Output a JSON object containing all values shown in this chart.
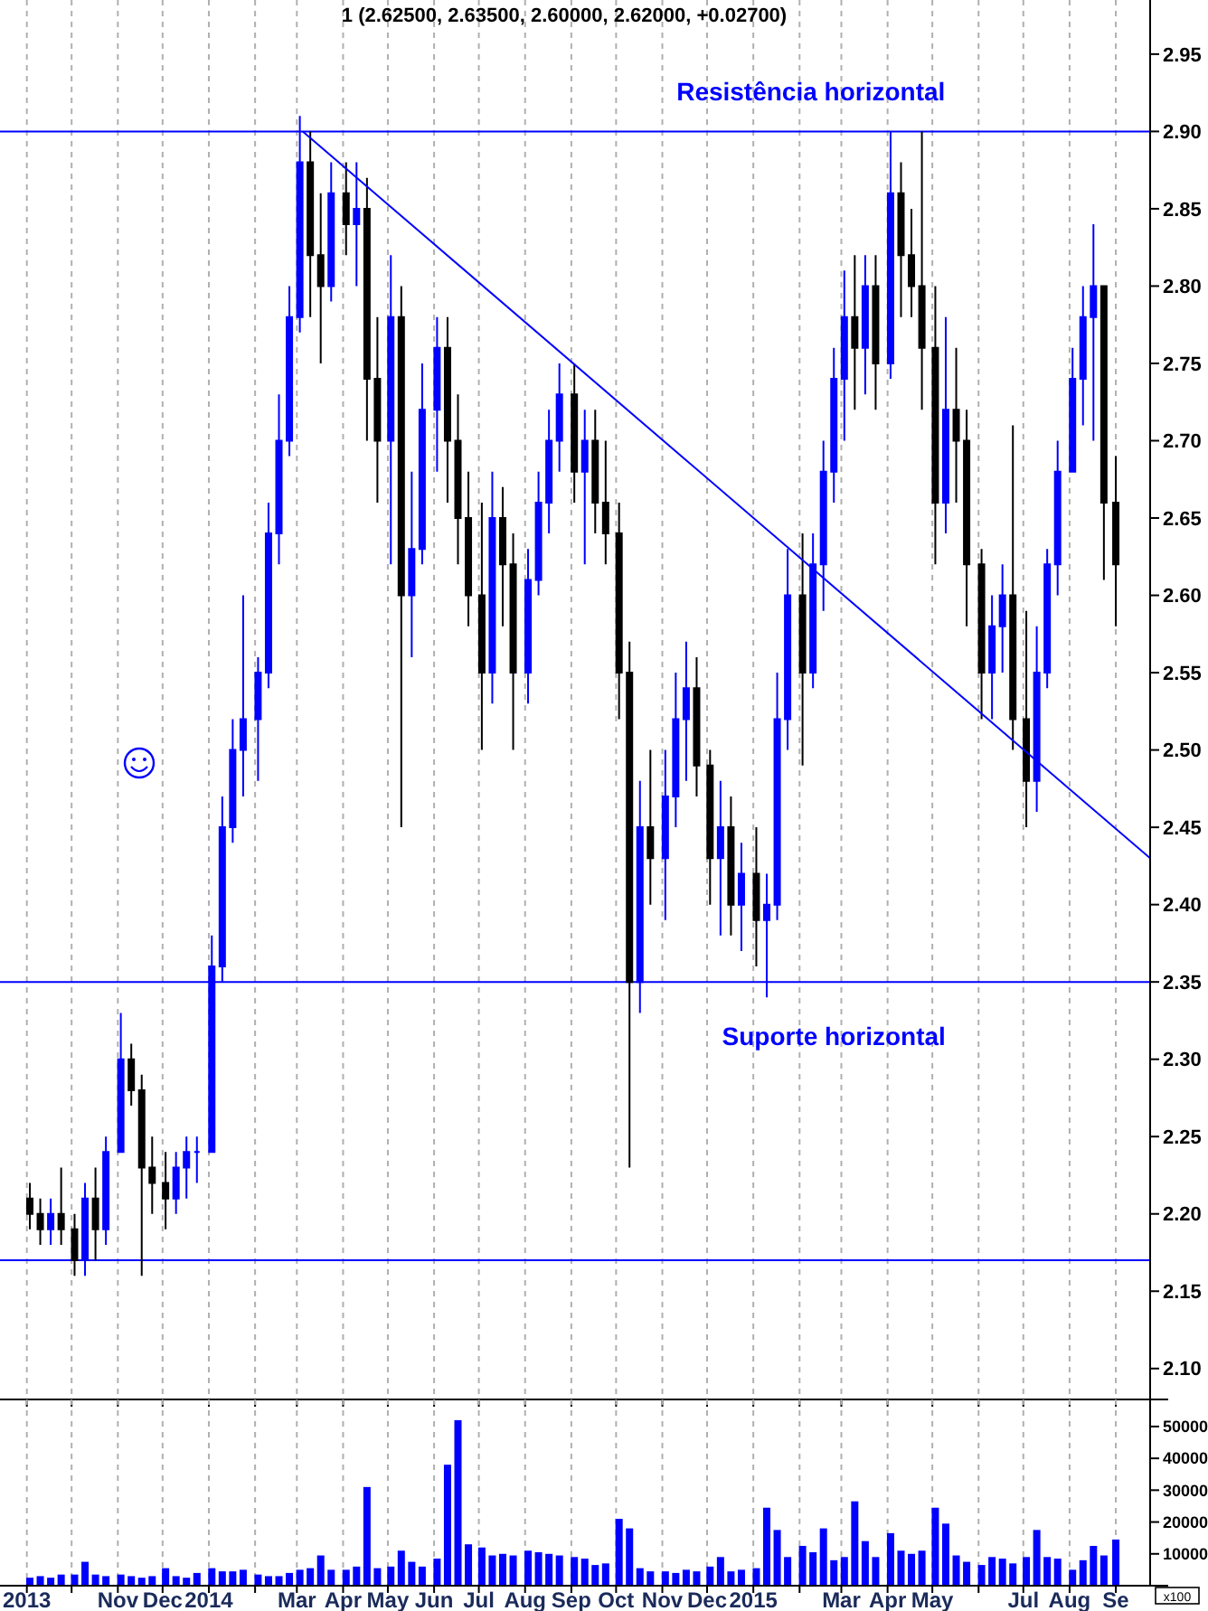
{
  "chart_data": [
    {
      "type": "candlestick",
      "title": "1 (2.62500, 2.63500, 2.60000, 2.62000, +0.02700)",
      "x": [
        "2013-09-03",
        "2013-09-10",
        "2013-09-17",
        "2013-09-24",
        "2013-10-03",
        "2013-10-10",
        "2013-10-17",
        "2013-10-24",
        "2013-11-03",
        "2013-11-10",
        "2013-11-17",
        "2013-11-24",
        "2013-12-03",
        "2013-12-10",
        "2013-12-17",
        "2013-12-24",
        "2014-01-03",
        "2014-01-10",
        "2014-01-17",
        "2014-01-24",
        "2014-02-03",
        "2014-02-10",
        "2014-02-17",
        "2014-02-24",
        "2014-03-03",
        "2014-03-10",
        "2014-03-17",
        "2014-03-24",
        "2014-04-03",
        "2014-04-10",
        "2014-04-17",
        "2014-04-24",
        "2014-05-03",
        "2014-05-10",
        "2014-05-17",
        "2014-05-24",
        "2014-06-03",
        "2014-06-10",
        "2014-06-17",
        "2014-06-24",
        "2014-07-03",
        "2014-07-10",
        "2014-07-17",
        "2014-07-24",
        "2014-08-03",
        "2014-08-10",
        "2014-08-17",
        "2014-08-24",
        "2014-09-03",
        "2014-09-10",
        "2014-09-17",
        "2014-09-24",
        "2014-10-03",
        "2014-10-10",
        "2014-10-17",
        "2014-10-24",
        "2014-11-03",
        "2014-11-10",
        "2014-11-17",
        "2014-11-24",
        "2014-12-03",
        "2014-12-10",
        "2014-12-17",
        "2014-12-24",
        "2015-01-03",
        "2015-01-10",
        "2015-01-17",
        "2015-01-24",
        "2015-02-03",
        "2015-02-10",
        "2015-02-17",
        "2015-02-24",
        "2015-03-03",
        "2015-03-10",
        "2015-03-17",
        "2015-03-24",
        "2015-04-03",
        "2015-04-10",
        "2015-04-17",
        "2015-04-24",
        "2015-05-03",
        "2015-05-10",
        "2015-05-17",
        "2015-05-24",
        "2015-06-03",
        "2015-06-10",
        "2015-06-17",
        "2015-06-24",
        "2015-07-03",
        "2015-07-10",
        "2015-07-17",
        "2015-07-24",
        "2015-08-03",
        "2015-08-10",
        "2015-08-17",
        "2015-08-24",
        "2015-09-01"
      ],
      "ohlc": [
        [
          2.21,
          2.22,
          2.19,
          2.2
        ],
        [
          2.2,
          2.21,
          2.18,
          2.19
        ],
        [
          2.19,
          2.21,
          2.18,
          2.2
        ],
        [
          2.2,
          2.23,
          2.18,
          2.19
        ],
        [
          2.19,
          2.2,
          2.16,
          2.17
        ],
        [
          2.17,
          2.22,
          2.16,
          2.21
        ],
        [
          2.21,
          2.23,
          2.17,
          2.19
        ],
        [
          2.19,
          2.25,
          2.18,
          2.24
        ],
        [
          2.24,
          2.33,
          2.24,
          2.3
        ],
        [
          2.3,
          2.31,
          2.27,
          2.28
        ],
        [
          2.28,
          2.29,
          2.16,
          2.23
        ],
        [
          2.23,
          2.25,
          2.2,
          2.22
        ],
        [
          2.22,
          2.24,
          2.19,
          2.21
        ],
        [
          2.21,
          2.24,
          2.2,
          2.23
        ],
        [
          2.23,
          2.25,
          2.21,
          2.24
        ],
        [
          2.24,
          2.25,
          2.22,
          2.24
        ],
        [
          2.24,
          2.38,
          2.24,
          2.36
        ],
        [
          2.36,
          2.47,
          2.35,
          2.45
        ],
        [
          2.45,
          2.52,
          2.44,
          2.5
        ],
        [
          2.5,
          2.6,
          2.47,
          2.52
        ],
        [
          2.52,
          2.56,
          2.48,
          2.55
        ],
        [
          2.55,
          2.66,
          2.54,
          2.64
        ],
        [
          2.64,
          2.73,
          2.62,
          2.7
        ],
        [
          2.7,
          2.8,
          2.69,
          2.78
        ],
        [
          2.78,
          2.91,
          2.77,
          2.88
        ],
        [
          2.88,
          2.9,
          2.78,
          2.82
        ],
        [
          2.82,
          2.86,
          2.75,
          2.8
        ],
        [
          2.8,
          2.88,
          2.79,
          2.86
        ],
        [
          2.86,
          2.88,
          2.82,
          2.84
        ],
        [
          2.84,
          2.88,
          2.8,
          2.85
        ],
        [
          2.85,
          2.87,
          2.7,
          2.74
        ],
        [
          2.74,
          2.78,
          2.66,
          2.7
        ],
        [
          2.7,
          2.82,
          2.62,
          2.78
        ],
        [
          2.78,
          2.8,
          2.45,
          2.6
        ],
        [
          2.6,
          2.68,
          2.56,
          2.63
        ],
        [
          2.63,
          2.75,
          2.62,
          2.72
        ],
        [
          2.72,
          2.78,
          2.68,
          2.76
        ],
        [
          2.76,
          2.78,
          2.66,
          2.7
        ],
        [
          2.7,
          2.73,
          2.62,
          2.65
        ],
        [
          2.65,
          2.68,
          2.58,
          2.6
        ],
        [
          2.6,
          2.66,
          2.5,
          2.55
        ],
        [
          2.55,
          2.68,
          2.53,
          2.65
        ],
        [
          2.65,
          2.67,
          2.58,
          2.62
        ],
        [
          2.62,
          2.64,
          2.5,
          2.55
        ],
        [
          2.55,
          2.63,
          2.53,
          2.61
        ],
        [
          2.61,
          2.68,
          2.6,
          2.66
        ],
        [
          2.66,
          2.72,
          2.64,
          2.7
        ],
        [
          2.7,
          2.75,
          2.68,
          2.73
        ],
        [
          2.73,
          2.75,
          2.66,
          2.68
        ],
        [
          2.68,
          2.72,
          2.62,
          2.7
        ],
        [
          2.7,
          2.72,
          2.64,
          2.66
        ],
        [
          2.66,
          2.7,
          2.62,
          2.64
        ],
        [
          2.64,
          2.66,
          2.52,
          2.55
        ],
        [
          2.55,
          2.57,
          2.23,
          2.35
        ],
        [
          2.35,
          2.48,
          2.33,
          2.45
        ],
        [
          2.45,
          2.5,
          2.4,
          2.43
        ],
        [
          2.43,
          2.5,
          2.39,
          2.47
        ],
        [
          2.47,
          2.55,
          2.45,
          2.52
        ],
        [
          2.52,
          2.57,
          2.48,
          2.54
        ],
        [
          2.54,
          2.56,
          2.47,
          2.49
        ],
        [
          2.49,
          2.5,
          2.4,
          2.43
        ],
        [
          2.43,
          2.48,
          2.38,
          2.45
        ],
        [
          2.45,
          2.47,
          2.38,
          2.4
        ],
        [
          2.4,
          2.44,
          2.37,
          2.42
        ],
        [
          2.42,
          2.45,
          2.36,
          2.39
        ],
        [
          2.39,
          2.42,
          2.34,
          2.4
        ],
        [
          2.4,
          2.55,
          2.39,
          2.52
        ],
        [
          2.52,
          2.63,
          2.5,
          2.6
        ],
        [
          2.6,
          2.64,
          2.49,
          2.55
        ],
        [
          2.55,
          2.64,
          2.54,
          2.62
        ],
        [
          2.62,
          2.7,
          2.59,
          2.68
        ],
        [
          2.68,
          2.76,
          2.66,
          2.74
        ],
        [
          2.74,
          2.81,
          2.7,
          2.78
        ],
        [
          2.78,
          2.82,
          2.72,
          2.76
        ],
        [
          2.76,
          2.82,
          2.73,
          2.8
        ],
        [
          2.8,
          2.82,
          2.72,
          2.75
        ],
        [
          2.75,
          2.9,
          2.74,
          2.86
        ],
        [
          2.86,
          2.88,
          2.78,
          2.82
        ],
        [
          2.82,
          2.85,
          2.78,
          2.8
        ],
        [
          2.8,
          2.9,
          2.72,
          2.76
        ],
        [
          2.76,
          2.8,
          2.62,
          2.66
        ],
        [
          2.66,
          2.78,
          2.64,
          2.72
        ],
        [
          2.72,
          2.76,
          2.66,
          2.7
        ],
        [
          2.7,
          2.72,
          2.58,
          2.62
        ],
        [
          2.62,
          2.63,
          2.52,
          2.55
        ],
        [
          2.55,
          2.6,
          2.52,
          2.58
        ],
        [
          2.58,
          2.62,
          2.55,
          2.6
        ],
        [
          2.6,
          2.71,
          2.5,
          2.52
        ],
        [
          2.52,
          2.59,
          2.45,
          2.48
        ],
        [
          2.48,
          2.58,
          2.46,
          2.55
        ],
        [
          2.55,
          2.63,
          2.54,
          2.62
        ],
        [
          2.62,
          2.7,
          2.6,
          2.68
        ],
        [
          2.68,
          2.76,
          2.68,
          2.74
        ],
        [
          2.74,
          2.8,
          2.71,
          2.78
        ],
        [
          2.78,
          2.84,
          2.7,
          2.8
        ],
        [
          2.8,
          2.8,
          2.61,
          2.66
        ],
        [
          2.66,
          2.69,
          2.58,
          2.62
        ]
      ],
      "colors": [
        "#000000",
        "#000000",
        "#0000ff",
        "#000000",
        "#000000",
        "#0000ff",
        "#000000",
        "#0000ff",
        "#0000ff",
        "#000000",
        "#000000",
        "#000000",
        "#000000",
        "#0000ff",
        "#0000ff",
        "#0000ff",
        "#0000ff",
        "#0000ff",
        "#0000ff",
        "#0000ff",
        "#0000ff",
        "#0000ff",
        "#0000ff",
        "#0000ff",
        "#0000ff",
        "#000000",
        "#000000",
        "#0000ff",
        "#000000",
        "#0000ff",
        "#000000",
        "#000000",
        "#0000ff",
        "#000000",
        "#0000ff",
        "#0000ff",
        "#0000ff",
        "#000000",
        "#000000",
        "#000000",
        "#000000",
        "#0000ff",
        "#000000",
        "#000000",
        "#0000ff",
        "#0000ff",
        "#0000ff",
        "#0000ff",
        "#000000",
        "#0000ff",
        "#000000",
        "#000000",
        "#000000",
        "#000000",
        "#0000ff",
        "#000000",
        "#0000ff",
        "#0000ff",
        "#0000ff",
        "#000000",
        "#000000",
        "#0000ff",
        "#000000",
        "#0000ff",
        "#000000",
        "#0000ff",
        "#0000ff",
        "#0000ff",
        "#000000",
        "#0000ff",
        "#0000ff",
        "#0000ff",
        "#0000ff",
        "#000000",
        "#0000ff",
        "#000000",
        "#0000ff",
        "#000000",
        "#000000",
        "#000000",
        "#000000",
        "#0000ff",
        "#000000",
        "#000000",
        "#000000",
        "#0000ff",
        "#0000ff",
        "#000000",
        "#000000",
        "#0000ff",
        "#0000ff",
        "#0000ff",
        "#0000ff",
        "#0000ff",
        "#0000ff",
        "#000000",
        "#000000"
      ],
      "series": [
        {
          "type": "line",
          "x": [
            "2014-03-05",
            "2015-09-24"
          ],
          "values": [
            2.9,
            2.43
          ],
          "color": "#0000ff"
        }
      ],
      "ref_lines": [
        {
          "axis": "y",
          "value": 2.9,
          "label": "Resistência horizontal",
          "color": "#0000ff"
        },
        {
          "axis": "y",
          "value": 2.35,
          "label": "Suporte horizontal",
          "color": "#0000ff"
        },
        {
          "axis": "y",
          "value": 2.17,
          "color": "#0000ff"
        }
      ],
      "xlim": [
        "2013-08-14",
        "2015-09-24"
      ],
      "xticks": [
        {
          "value": "2013-09-01",
          "label": null
        },
        {
          "value": "2013-10-01",
          "label": null
        },
        {
          "value": "2013-11-01",
          "label": null
        },
        {
          "value": "2013-12-01",
          "label": null
        },
        {
          "value": "2014-01-01",
          "label": null
        },
        {
          "value": "2014-02-01",
          "label": null
        },
        {
          "value": "2014-03-01",
          "label": null
        },
        {
          "value": "2014-04-01",
          "label": null
        },
        {
          "value": "2014-05-01",
          "label": null
        },
        {
          "value": "2014-06-01",
          "label": null
        },
        {
          "value": "2014-07-01",
          "label": null
        },
        {
          "value": "2014-08-01",
          "label": null
        },
        {
          "value": "2014-09-01",
          "label": null
        },
        {
          "value": "2014-10-01",
          "label": null
        },
        {
          "value": "2014-11-01",
          "label": null
        },
        {
          "value": "2014-12-01",
          "label": null
        },
        {
          "value": "2015-01-01",
          "label": null
        },
        {
          "value": "2015-02-01",
          "label": null
        },
        {
          "value": "2015-03-01",
          "label": null
        },
        {
          "value": "2015-04-01",
          "label": null
        },
        {
          "value": "2015-05-01",
          "label": null
        },
        {
          "value": "2015-06-01",
          "label": null
        },
        {
          "value": "2015-07-01",
          "label": null
        },
        {
          "value": "2015-08-01",
          "label": null
        },
        {
          "value": "2015-09-01",
          "label": null
        }
      ],
      "ylim": [
        2.08,
        2.985
      ],
      "yticks": [
        {
          "value": 2.1,
          "label": "2.10"
        },
        2.15,
        {
          "value": 2.2,
          "label": "2.20"
        },
        2.25,
        {
          "value": 2.3,
          "label": "2.30"
        },
        2.35,
        {
          "value": 2.4,
          "label": "2.40"
        },
        2.45,
        {
          "value": 2.5,
          "label": "2.50"
        },
        2.55,
        {
          "value": 2.6,
          "label": "2.60"
        },
        2.65,
        {
          "value": 2.7,
          "label": "2.70"
        },
        2.75,
        {
          "value": 2.8,
          "label": "2.80"
        },
        2.85,
        {
          "value": 2.9,
          "label": "2.90"
        },
        2.95
      ],
      "grid": "x",
      "tick_labels": "y"
    },
    {
      "type": "bar",
      "ylabel": "x100",
      "color": "#0000ff",
      "x": [
        "2013-09-03",
        "2013-09-10",
        "2013-09-17",
        "2013-09-24",
        "2013-10-03",
        "2013-10-10",
        "2013-10-17",
        "2013-10-24",
        "2013-11-03",
        "2013-11-10",
        "2013-11-17",
        "2013-11-24",
        "2013-12-03",
        "2013-12-10",
        "2013-12-17",
        "2013-12-24",
        "2014-01-03",
        "2014-01-10",
        "2014-01-17",
        "2014-01-24",
        "2014-02-03",
        "2014-02-10",
        "2014-02-17",
        "2014-02-24",
        "2014-03-03",
        "2014-03-10",
        "2014-03-17",
        "2014-03-24",
        "2014-04-03",
        "2014-04-10",
        "2014-04-17",
        "2014-04-24",
        "2014-05-03",
        "2014-05-10",
        "2014-05-17",
        "2014-05-24",
        "2014-06-03",
        "2014-06-10",
        "2014-06-17",
        "2014-06-24",
        "2014-07-03",
        "2014-07-10",
        "2014-07-17",
        "2014-07-24",
        "2014-08-03",
        "2014-08-10",
        "2014-08-17",
        "2014-08-24",
        "2014-09-03",
        "2014-09-10",
        "2014-09-17",
        "2014-09-24",
        "2014-10-03",
        "2014-10-10",
        "2014-10-17",
        "2014-10-24",
        "2014-11-03",
        "2014-11-10",
        "2014-11-17",
        "2014-11-24",
        "2014-12-03",
        "2014-12-10",
        "2014-12-17",
        "2014-12-24",
        "2015-01-03",
        "2015-01-10",
        "2015-01-17",
        "2015-01-24",
        "2015-02-03",
        "2015-02-10",
        "2015-02-17",
        "2015-02-24",
        "2015-03-03",
        "2015-03-10",
        "2015-03-17",
        "2015-03-24",
        "2015-04-03",
        "2015-04-10",
        "2015-04-17",
        "2015-04-24",
        "2015-05-03",
        "2015-05-10",
        "2015-05-17",
        "2015-05-24",
        "2015-06-03",
        "2015-06-10",
        "2015-06-17",
        "2015-06-24",
        "2015-07-03",
        "2015-07-10",
        "2015-07-17",
        "2015-07-24",
        "2015-08-03",
        "2015-08-10",
        "2015-08-17",
        "2015-08-24",
        "2015-09-01"
      ],
      "values": [
        2500,
        3000,
        2500,
        3500,
        3500,
        7500,
        3500,
        3000,
        3500,
        3000,
        2500,
        3000,
        5500,
        3000,
        2500,
        4000,
        5500,
        4500,
        4500,
        5000,
        3500,
        3000,
        3000,
        4000,
        5000,
        5500,
        9500,
        5000,
        5000,
        6000,
        31000,
        5500,
        6000,
        11000,
        7500,
        6000,
        8500,
        38000,
        52000,
        13000,
        12000,
        9500,
        10000,
        9500,
        11000,
        10500,
        10000,
        9500,
        9000,
        8500,
        6500,
        7000,
        21000,
        18000,
        5500,
        4500,
        4500,
        4000,
        5000,
        4500,
        6000,
        9000,
        4500,
        5000,
        5500,
        24500,
        17500,
        9000,
        12500,
        10500,
        18000,
        8000,
        9000,
        26500,
        14000,
        9000,
        16500,
        11000,
        10000,
        11000,
        24500,
        19500,
        9500,
        7500,
        6500,
        9000,
        8500,
        7000,
        9000,
        17500,
        9000,
        8500,
        5000,
        8000,
        12500,
        9500,
        14500
      ],
      "xlim": [
        "2013-08-14",
        "2015-09-24"
      ],
      "xticks": [
        {
          "value": "2013-09-01",
          "label": "2013"
        },
        {
          "value": "2013-10-01",
          "label": null
        },
        {
          "value": "2013-11-01",
          "label": "Nov"
        },
        {
          "value": "2013-12-01",
          "label": "Dec"
        },
        {
          "value": "2014-01-01",
          "label": "2014"
        },
        {
          "value": "2014-02-01",
          "label": null
        },
        {
          "value": "2014-03-01",
          "label": "Mar"
        },
        {
          "value": "2014-04-01",
          "label": "Apr"
        },
        {
          "value": "2014-05-01",
          "label": "May"
        },
        {
          "value": "2014-06-01",
          "label": "Jun"
        },
        {
          "value": "2014-07-01",
          "label": "Jul"
        },
        {
          "value": "2014-08-01",
          "label": "Aug"
        },
        {
          "value": "2014-09-01",
          "label": "Sep"
        },
        {
          "value": "2014-10-01",
          "label": "Oct"
        },
        {
          "value": "2014-11-01",
          "label": "Nov"
        },
        {
          "value": "2014-12-01",
          "label": "Dec"
        },
        {
          "value": "2015-01-01",
          "label": "2015"
        },
        {
          "value": "2015-02-01",
          "label": null
        },
        {
          "value": "2015-03-01",
          "label": "Mar"
        },
        {
          "value": "2015-04-01",
          "label": "Apr"
        },
        {
          "value": "2015-05-01",
          "label": "May"
        },
        {
          "value": "2015-06-01",
          "label": null
        },
        {
          "value": "2015-07-01",
          "label": "Jul"
        },
        {
          "value": "2015-08-01",
          "label": "Aug"
        },
        {
          "value": "2015-09-01",
          "label": "Se"
        }
      ],
      "ylim": [
        0,
        58500
      ],
      "yticks": [
        10000,
        20000,
        30000,
        40000,
        50000
      ],
      "grid": "x"
    }
  ]
}
